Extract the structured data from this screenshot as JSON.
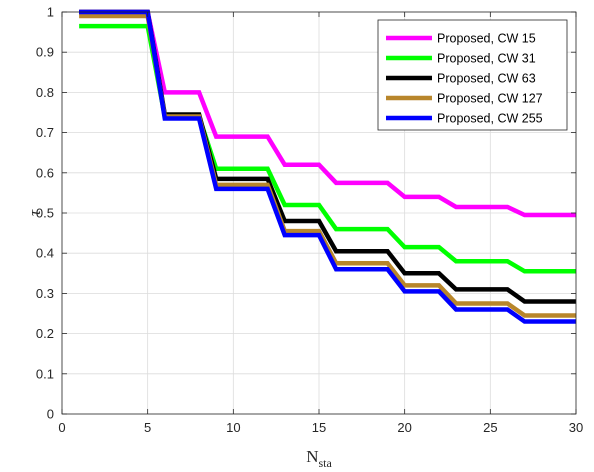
{
  "chart_data": {
    "type": "line",
    "xlabel": "N",
    "xlabel_sub": "sta",
    "ylabel": "τ",
    "xlim": [
      0,
      30
    ],
    "ylim": [
      0,
      1
    ],
    "xticks": [
      0,
      5,
      10,
      15,
      20,
      25,
      30
    ],
    "yticks": [
      0,
      0.1,
      0.2,
      0.3,
      0.4,
      0.5,
      0.6,
      0.7,
      0.8,
      0.9,
      1
    ],
    "grid": true,
    "legend_position": "top-right",
    "step": true,
    "series": [
      {
        "name": "Proposed, CW 15",
        "color": "#ff00ff",
        "points": [
          [
            1,
            1.0
          ],
          [
            5,
            1.0
          ],
          [
            6,
            0.8
          ],
          [
            8,
            0.8
          ],
          [
            9,
            0.69
          ],
          [
            12,
            0.69
          ],
          [
            13,
            0.62
          ],
          [
            15,
            0.62
          ],
          [
            16,
            0.575
          ],
          [
            19,
            0.575
          ],
          [
            20,
            0.54
          ],
          [
            22,
            0.54
          ],
          [
            23,
            0.515
          ],
          [
            26,
            0.515
          ],
          [
            27,
            0.495
          ],
          [
            30,
            0.495
          ]
        ]
      },
      {
        "name": "Proposed, CW 31",
        "color": "#00ff00",
        "points": [
          [
            1,
            0.965
          ],
          [
            5,
            0.965
          ],
          [
            6,
            0.74
          ],
          [
            8,
            0.74
          ],
          [
            9,
            0.61
          ],
          [
            12,
            0.61
          ],
          [
            13,
            0.52
          ],
          [
            15,
            0.52
          ],
          [
            16,
            0.46
          ],
          [
            19,
            0.46
          ],
          [
            20,
            0.415
          ],
          [
            22,
            0.415
          ],
          [
            23,
            0.38
          ],
          [
            26,
            0.38
          ],
          [
            27,
            0.355
          ],
          [
            30,
            0.355
          ]
        ]
      },
      {
        "name": "Proposed, CW 63",
        "color": "#000000",
        "points": [
          [
            1,
            1.0
          ],
          [
            5,
            1.0
          ],
          [
            6,
            0.745
          ],
          [
            8,
            0.745
          ],
          [
            9,
            0.585
          ],
          [
            12,
            0.585
          ],
          [
            13,
            0.48
          ],
          [
            15,
            0.48
          ],
          [
            16,
            0.405
          ],
          [
            19,
            0.405
          ],
          [
            20,
            0.35
          ],
          [
            22,
            0.35
          ],
          [
            23,
            0.31
          ],
          [
            26,
            0.31
          ],
          [
            27,
            0.28
          ],
          [
            30,
            0.28
          ]
        ]
      },
      {
        "name": "Proposed, CW 127",
        "color": "#b8862b",
        "points": [
          [
            1,
            0.99
          ],
          [
            5,
            0.99
          ],
          [
            6,
            0.74
          ],
          [
            8,
            0.74
          ],
          [
            9,
            0.57
          ],
          [
            12,
            0.57
          ],
          [
            13,
            0.455
          ],
          [
            15,
            0.455
          ],
          [
            16,
            0.375
          ],
          [
            19,
            0.375
          ],
          [
            20,
            0.32
          ],
          [
            22,
            0.32
          ],
          [
            23,
            0.275
          ],
          [
            26,
            0.275
          ],
          [
            27,
            0.245
          ],
          [
            30,
            0.245
          ]
        ]
      },
      {
        "name": "Proposed, CW 255",
        "color": "#0000ff",
        "points": [
          [
            1,
            1.0
          ],
          [
            5,
            1.0
          ],
          [
            6,
            0.735
          ],
          [
            8,
            0.735
          ],
          [
            9,
            0.56
          ],
          [
            12,
            0.56
          ],
          [
            13,
            0.445
          ],
          [
            15,
            0.445
          ],
          [
            16,
            0.36
          ],
          [
            19,
            0.36
          ],
          [
            20,
            0.305
          ],
          [
            22,
            0.305
          ],
          [
            23,
            0.26
          ],
          [
            26,
            0.26
          ],
          [
            27,
            0.23
          ],
          [
            30,
            0.23
          ]
        ]
      }
    ]
  }
}
